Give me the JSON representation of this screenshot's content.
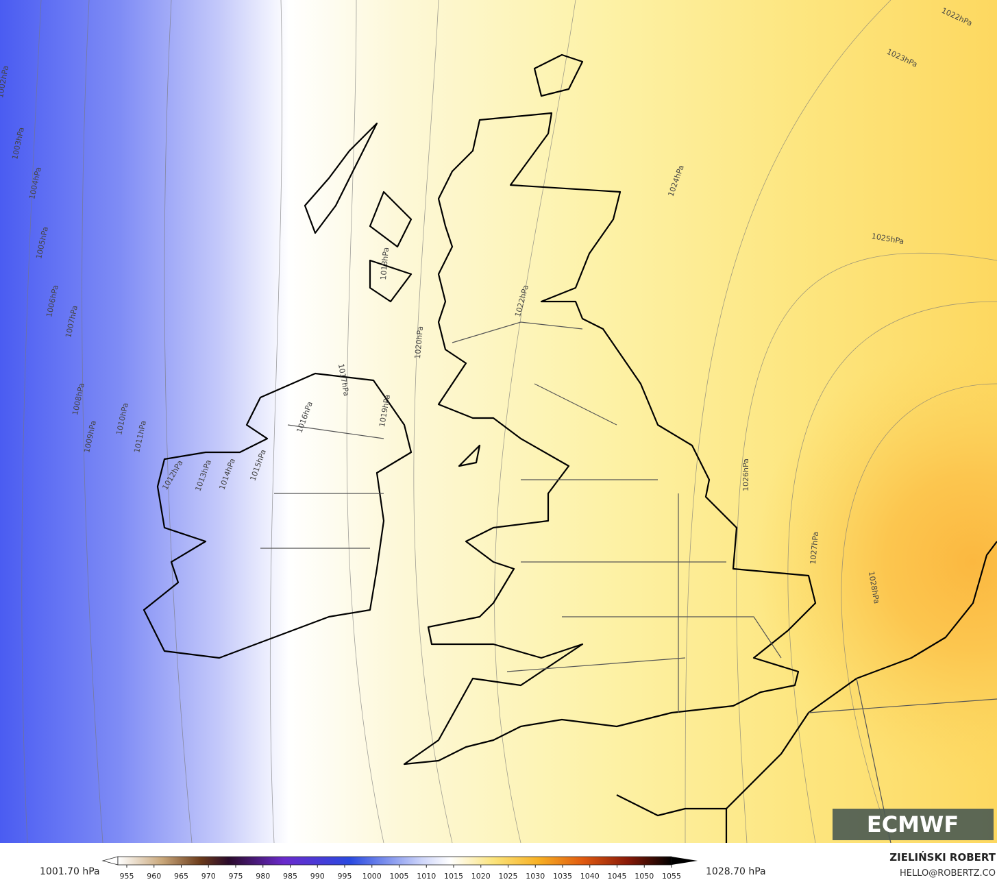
{
  "isobar_labels": [
    "1002hPa",
    "1003hPa",
    "1004hPa",
    "1005hPa",
    "1006hPa",
    "1007hPa",
    "1008hPa",
    "1009hPa",
    "1010hPa",
    "1011hPa",
    "1012hPa",
    "1013hPa",
    "1014hPa",
    "1015hPa",
    "1016hPa",
    "1017hPa",
    "1018hPa",
    "1019hPa",
    "1020hPa",
    "1022hPa",
    "1022hPa",
    "1023hPa",
    "1024hPa",
    "1025hPa",
    "1026hPa",
    "1027hPa",
    "1028hPa"
  ],
  "colorbar": {
    "min_label": "1001.70 hPa",
    "max_label": "1028.70 hPa",
    "ticks": [
      955,
      960,
      965,
      970,
      975,
      980,
      985,
      990,
      995,
      1000,
      1005,
      1010,
      1015,
      1020,
      1025,
      1030,
      1035,
      1040,
      1045,
      1050,
      1055
    ]
  },
  "logo": "ECMWF",
  "credit": {
    "author": "ZIELIŃSKI ROBERT",
    "contact": "HELLO@ROBERTZ.CO"
  }
}
